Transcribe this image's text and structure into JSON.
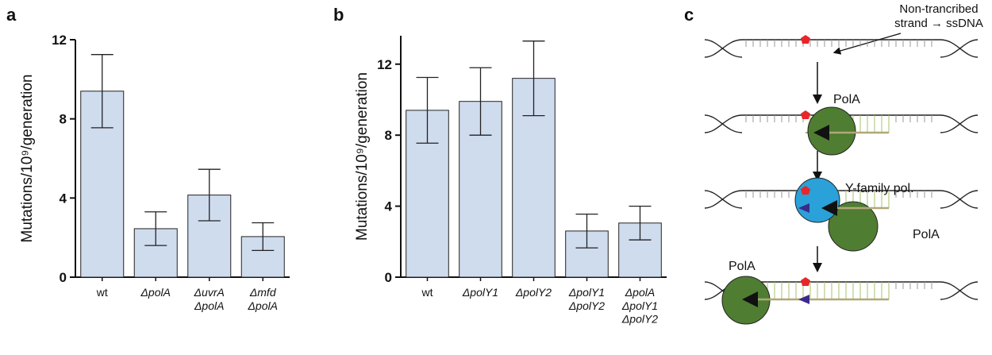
{
  "chart_data": [
    {
      "type": "bar",
      "panel": "a",
      "y_label": "Mutations/10⁹/generation",
      "categories": [
        "wt",
        "ΔpolA",
        "ΔuvrA\nΔpolA",
        "Δmfd\nΔpolA"
      ],
      "values": [
        9.4,
        2.45,
        4.15,
        2.05
      ],
      "errors": [
        1.85,
        0.85,
        1.3,
        0.7
      ],
      "color": "#cfdcee",
      "ylim": [
        0,
        12
      ],
      "yticks": [
        0,
        4,
        8,
        12
      ]
    },
    {
      "type": "bar",
      "panel": "b",
      "y_label": "Mutations/10⁹/generation",
      "categories": [
        "wt",
        "ΔpolY1",
        "ΔpolY2",
        "ΔpolY1\nΔpolY2",
        "ΔpolA\nΔpolY1\nΔpolY2"
      ],
      "values": [
        9.4,
        9.9,
        11.2,
        2.6,
        3.05
      ],
      "errors": [
        1.85,
        1.9,
        2.1,
        0.95,
        0.95
      ],
      "color": "#cfdcee",
      "ylim": [
        0,
        13.6
      ],
      "yticks": [
        0,
        4,
        8,
        12
      ]
    }
  ],
  "diagram": {
    "panel": "c",
    "annotation": "Non-trancribed\nstrand → ssDNA",
    "labels": [
      "PolA",
      "Y-family pol.",
      "PolA",
      "PolA"
    ]
  }
}
